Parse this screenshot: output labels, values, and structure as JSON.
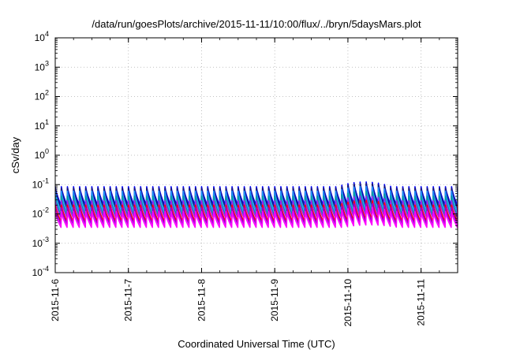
{
  "chart_data": {
    "type": "line",
    "title": "/data/run/goesPlots/archive/2015-11-11/10:00/flux/../bryn/5daysMars.plot",
    "xlabel": "Coordinated Universal Time (UTC)",
    "ylabel": "cSv/day",
    "yscale": "log",
    "ylim": [
      0.0001,
      10000
    ],
    "xlim": [
      "2015-11-06T00:00",
      "2015-11-11T12:00"
    ],
    "grid": true,
    "y_ticks": [
      {
        "value": 0.0001,
        "base": "10",
        "exp": "-4"
      },
      {
        "value": 0.001,
        "base": "10",
        "exp": "-3"
      },
      {
        "value": 0.01,
        "base": "10",
        "exp": "-2"
      },
      {
        "value": 0.1,
        "base": "10",
        "exp": "-1"
      },
      {
        "value": 1,
        "base": "10",
        "exp": "0"
      },
      {
        "value": 10,
        "base": "10",
        "exp": "1"
      },
      {
        "value": 100,
        "base": "10",
        "exp": "2"
      },
      {
        "value": 1000,
        "base": "10",
        "exp": "3"
      },
      {
        "value": 10000,
        "base": "10",
        "exp": "4"
      }
    ],
    "x_ticks": [
      "2015-11-6",
      "2015-11-7",
      "2015-11-8",
      "2015-11-9",
      "2015-11-10",
      "2015-11-11"
    ],
    "cycle_period_hours": 2,
    "series": [
      {
        "color": "#ff00ff",
        "peak": 0.012,
        "trough": 0.0035
      },
      {
        "color": "#9400d3",
        "peak": 0.016,
        "trough": 0.0045
      },
      {
        "color": "#ff0000",
        "peak": 0.02,
        "trough": 0.0055
      },
      {
        "color": "#a020f0",
        "peak": 0.028,
        "trough": 0.0075
      },
      {
        "color": "#00a0a0",
        "peak": 0.04,
        "trough": 0.009
      },
      {
        "color": "#1e90ff",
        "peak": 0.06,
        "trough": 0.012
      },
      {
        "color": "#191970",
        "peak": 0.075,
        "trough": 0.016
      },
      {
        "color": "#0000ff",
        "peak": 0.085,
        "trough": 0.02
      }
    ]
  }
}
